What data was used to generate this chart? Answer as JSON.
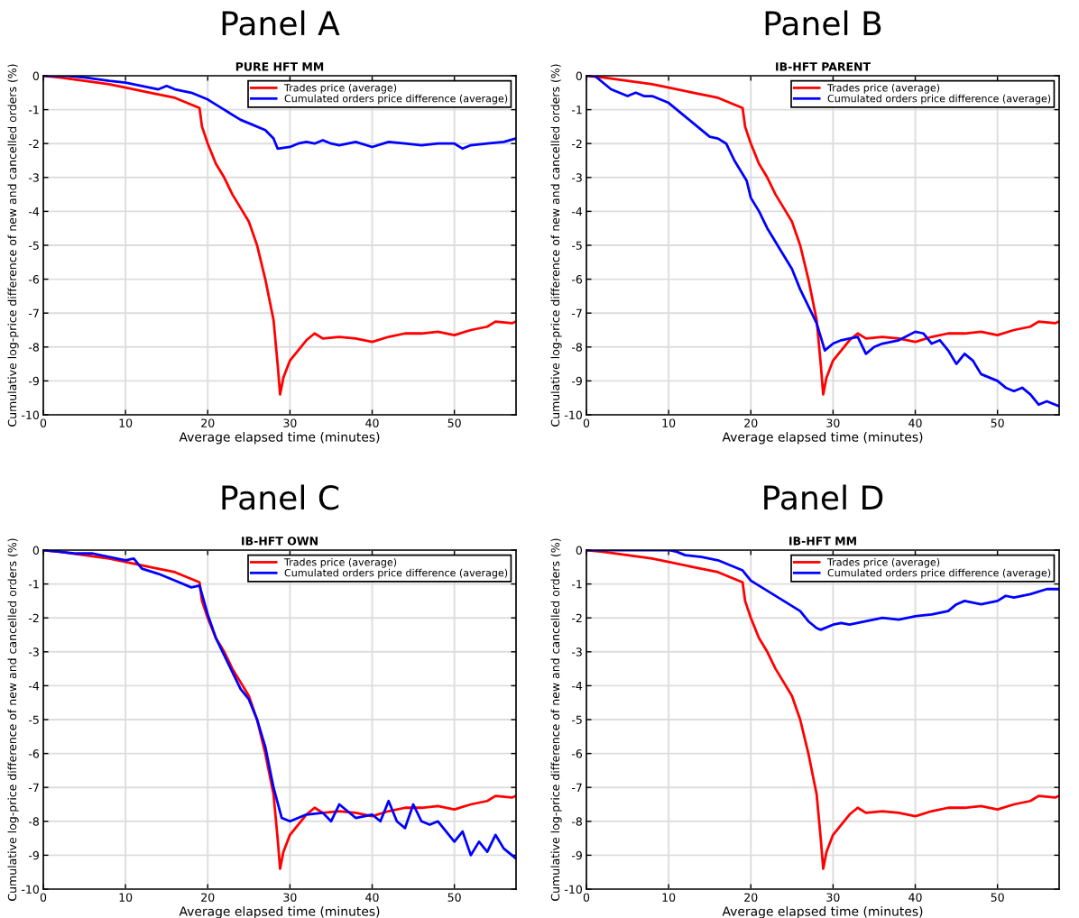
{
  "chart_data": [
    {
      "type": "line",
      "title": "Panel A",
      "subtitle": "PURE HFT MM",
      "xlabel": "Average elapsed time (minutes)",
      "ylabel": "Cumulative log-price difference of new and cancelled orders (%)",
      "xlim": [
        0,
        57.5
      ],
      "ylim": [
        -10,
        0
      ],
      "xticks": [
        0,
        10,
        20,
        30,
        40,
        50
      ],
      "yticks": [
        -10,
        -9,
        -8,
        -7,
        -6,
        -5,
        -4,
        -3,
        -2,
        -1,
        0
      ],
      "grid": true,
      "legend": "top right",
      "line_style": "solid",
      "marker": "none",
      "series": [
        {
          "name": "Trades price (average)",
          "color": "#ff0000",
          "x": [
            0,
            2,
            5,
            8,
            10,
            13,
            16,
            18,
            19,
            19.3,
            20,
            21,
            22,
            23,
            24,
            25,
            26,
            27,
            28,
            28.5,
            28.8,
            29.2,
            30,
            31,
            32,
            33,
            34,
            36,
            38,
            40,
            42,
            44,
            46,
            48,
            50,
            52,
            54,
            55,
            57,
            57.5
          ],
          "values": [
            0,
            -0.05,
            -0.15,
            -0.25,
            -0.35,
            -0.5,
            -0.65,
            -0.85,
            -0.95,
            -1.5,
            -2,
            -2.6,
            -3,
            -3.5,
            -3.9,
            -4.3,
            -5,
            -6,
            -7.2,
            -8.5,
            -9.4,
            -8.9,
            -8.4,
            -8.1,
            -7.8,
            -7.6,
            -7.75,
            -7.7,
            -7.75,
            -7.85,
            -7.7,
            -7.6,
            -7.6,
            -7.55,
            -7.65,
            -7.5,
            -7.4,
            -7.25,
            -7.3,
            -7.25
          ]
        },
        {
          "name": "Cumulated orders price difference (average)",
          "color": "#0000ff",
          "x": [
            0,
            3,
            5,
            8,
            10,
            12,
            14,
            15,
            16,
            18,
            19,
            20,
            22,
            24,
            25,
            27,
            28,
            28.5,
            30,
            31,
            32,
            33,
            34,
            35,
            36,
            38,
            40,
            42,
            44,
            46,
            48,
            50,
            51,
            52,
            54,
            56,
            57.5
          ],
          "values": [
            0,
            0,
            -0.05,
            -0.15,
            -0.2,
            -0.3,
            -0.4,
            -0.3,
            -0.4,
            -0.5,
            -0.6,
            -0.7,
            -1,
            -1.3,
            -1.4,
            -1.6,
            -1.85,
            -2.15,
            -2.1,
            -2.0,
            -1.95,
            -2,
            -1.9,
            -2.0,
            -2.05,
            -1.95,
            -2.1,
            -1.95,
            -2.0,
            -2.05,
            -2.0,
            -2.0,
            -2.15,
            -2.05,
            -2.0,
            -1.95,
            -1.85
          ]
        }
      ]
    },
    {
      "type": "line",
      "title": "Panel B",
      "subtitle": "IB-HFT PARENT",
      "xlabel": "Average elapsed time (minutes)",
      "ylabel": "Cumulative log-price difference of new and cancelled orders (%)",
      "xlim": [
        0,
        57.5
      ],
      "ylim": [
        -10,
        0
      ],
      "xticks": [
        0,
        10,
        20,
        30,
        40,
        50
      ],
      "yticks": [
        -10,
        -9,
        -8,
        -7,
        -6,
        -5,
        -4,
        -3,
        -2,
        -1,
        0
      ],
      "grid": true,
      "legend": "top right",
      "line_style": "solid",
      "marker": "none",
      "series": [
        {
          "name": "Trades price (average)",
          "color": "#ff0000",
          "x": [
            0,
            2,
            5,
            8,
            10,
            13,
            16,
            18,
            19,
            19.3,
            20,
            21,
            22,
            23,
            24,
            25,
            26,
            27,
            28,
            28.5,
            28.8,
            29.2,
            30,
            31,
            32,
            33,
            34,
            36,
            38,
            40,
            42,
            44,
            46,
            48,
            50,
            52,
            54,
            55,
            57,
            57.5
          ],
          "values": [
            0,
            -0.05,
            -0.15,
            -0.25,
            -0.35,
            -0.5,
            -0.65,
            -0.85,
            -0.95,
            -1.5,
            -2,
            -2.6,
            -3,
            -3.5,
            -3.9,
            -4.3,
            -5,
            -6,
            -7.2,
            -8.5,
            -9.4,
            -8.9,
            -8.4,
            -8.1,
            -7.8,
            -7.6,
            -7.75,
            -7.7,
            -7.75,
            -7.85,
            -7.7,
            -7.6,
            -7.6,
            -7.55,
            -7.65,
            -7.5,
            -7.4,
            -7.25,
            -7.3,
            -7.25
          ]
        },
        {
          "name": "Cumulated orders price difference (average)",
          "color": "#0000ff",
          "x": [
            0,
            1,
            2,
            3,
            4,
            5,
            6,
            7,
            8,
            9,
            10,
            11,
            12,
            13,
            14,
            15,
            16,
            17,
            18,
            19,
            19.5,
            20,
            21,
            22,
            23,
            24,
            25,
            26,
            27,
            28,
            29,
            30,
            31,
            32,
            33,
            34,
            35,
            36,
            38,
            40,
            41,
            42,
            43,
            44,
            45,
            46,
            47,
            48,
            49,
            50,
            51,
            52,
            53,
            54,
            55,
            56,
            57.5
          ],
          "values": [
            0,
            0,
            -0.2,
            -0.4,
            -0.5,
            -0.6,
            -0.5,
            -0.6,
            -0.6,
            -0.7,
            -0.8,
            -1.0,
            -1.2,
            -1.4,
            -1.6,
            -1.8,
            -1.85,
            -2.0,
            -2.5,
            -2.9,
            -3.1,
            -3.6,
            -4,
            -4.5,
            -4.9,
            -5.3,
            -5.7,
            -6.3,
            -6.8,
            -7.3,
            -8.1,
            -7.9,
            -7.8,
            -7.75,
            -7.7,
            -8.2,
            -8.0,
            -7.9,
            -7.8,
            -7.55,
            -7.6,
            -7.9,
            -7.8,
            -8.1,
            -8.5,
            -8.2,
            -8.4,
            -8.8,
            -8.9,
            -9.0,
            -9.2,
            -9.3,
            -9.2,
            -9.4,
            -9.7,
            -9.6,
            -9.75
          ]
        }
      ]
    },
    {
      "type": "line",
      "title": "Panel C",
      "subtitle": "IB-HFT OWN",
      "xlabel": "Average elapsed time (minutes)",
      "ylabel": "Cumulative log-price difference of new and cancelled orders (%)",
      "xlim": [
        0,
        57.5
      ],
      "ylim": [
        -10,
        0
      ],
      "xticks": [
        0,
        10,
        20,
        30,
        40,
        50
      ],
      "yticks": [
        -10,
        -9,
        -8,
        -7,
        -6,
        -5,
        -4,
        -3,
        -2,
        -1,
        0
      ],
      "grid": true,
      "legend": "top right",
      "line_style": "solid",
      "marker": "none",
      "series": [
        {
          "name": "Trades price (average)",
          "color": "#ff0000",
          "x": [
            0,
            2,
            5,
            8,
            10,
            13,
            16,
            18,
            19,
            19.3,
            20,
            21,
            22,
            23,
            24,
            25,
            26,
            27,
            28,
            28.5,
            28.8,
            29.2,
            30,
            31,
            32,
            33,
            34,
            36,
            38,
            40,
            42,
            44,
            46,
            48,
            50,
            52,
            54,
            55,
            57,
            57.5
          ],
          "values": [
            0,
            -0.05,
            -0.15,
            -0.25,
            -0.35,
            -0.5,
            -0.65,
            -0.85,
            -0.95,
            -1.5,
            -2,
            -2.6,
            -3,
            -3.5,
            -3.9,
            -4.3,
            -5,
            -6,
            -7.2,
            -8.5,
            -9.4,
            -8.9,
            -8.4,
            -8.1,
            -7.8,
            -7.6,
            -7.75,
            -7.7,
            -7.75,
            -7.85,
            -7.7,
            -7.6,
            -7.6,
            -7.55,
            -7.65,
            -7.5,
            -7.4,
            -7.25,
            -7.3,
            -7.25
          ]
        },
        {
          "name": "Cumulated orders price difference (average)",
          "color": "#0000ff",
          "x": [
            0,
            2,
            4,
            6,
            8,
            10,
            11,
            12,
            14,
            16,
            18,
            19,
            20,
            21,
            22,
            23,
            24,
            25,
            26,
            27,
            28,
            29,
            30,
            31,
            32,
            34,
            35,
            36,
            38,
            40,
            41,
            42,
            43,
            44,
            45,
            46,
            47,
            48,
            49,
            50,
            51,
            52,
            53,
            54,
            55,
            56,
            57.5
          ],
          "values": [
            0,
            -0.05,
            -0.1,
            -0.1,
            -0.2,
            -0.3,
            -0.25,
            -0.55,
            -0.7,
            -0.9,
            -1.1,
            -1.05,
            -1.9,
            -2.6,
            -3.1,
            -3.6,
            -4.1,
            -4.4,
            -5,
            -5.8,
            -7.0,
            -7.9,
            -8.0,
            -7.9,
            -7.8,
            -7.75,
            -8.0,
            -7.5,
            -7.9,
            -7.8,
            -8.0,
            -7.4,
            -8.0,
            -8.2,
            -7.5,
            -8.0,
            -8.1,
            -8.0,
            -8.3,
            -8.6,
            -8.3,
            -9.0,
            -8.6,
            -8.9,
            -8.4,
            -8.8,
            -9.1
          ]
        }
      ]
    },
    {
      "type": "line",
      "title": "Panel D",
      "subtitle": "IB-HFT MM",
      "xlabel": "Average elapsed time (minutes)",
      "ylabel": "Cumulative log-price difference of new and cancelled orders (%)",
      "xlim": [
        0,
        57.5
      ],
      "ylim": [
        -10,
        0
      ],
      "xticks": [
        0,
        10,
        20,
        30,
        40,
        50
      ],
      "yticks": [
        -10,
        -9,
        -8,
        -7,
        -6,
        -5,
        -4,
        -3,
        -2,
        -1,
        0
      ],
      "grid": true,
      "legend": "top right",
      "line_style": "solid",
      "marker": "none",
      "series": [
        {
          "name": "Trades price (average)",
          "color": "#ff0000",
          "x": [
            0,
            2,
            5,
            8,
            10,
            13,
            16,
            18,
            19,
            19.3,
            20,
            21,
            22,
            23,
            24,
            25,
            26,
            27,
            28,
            28.5,
            28.8,
            29.2,
            30,
            31,
            32,
            33,
            34,
            36,
            38,
            40,
            42,
            44,
            46,
            48,
            50,
            52,
            54,
            55,
            57,
            57.5
          ],
          "values": [
            0,
            -0.05,
            -0.15,
            -0.25,
            -0.35,
            -0.5,
            -0.65,
            -0.85,
            -0.95,
            -1.5,
            -2,
            -2.6,
            -3,
            -3.5,
            -3.9,
            -4.3,
            -5,
            -6,
            -7.2,
            -8.5,
            -9.4,
            -8.9,
            -8.4,
            -8.1,
            -7.8,
            -7.6,
            -7.75,
            -7.7,
            -7.75,
            -7.85,
            -7.7,
            -7.6,
            -7.6,
            -7.55,
            -7.65,
            -7.5,
            -7.4,
            -7.25,
            -7.3,
            -7.25
          ]
        },
        {
          "name": "Cumulated orders price difference (average)",
          "color": "#0000ff",
          "x": [
            0,
            3,
            6,
            9,
            10,
            11,
            12,
            14,
            16,
            18,
            19,
            20,
            22,
            24,
            26,
            27,
            28,
            28.5,
            30,
            31,
            32,
            34,
            36,
            38,
            40,
            42,
            44,
            45,
            46,
            48,
            50,
            51,
            52,
            54,
            56,
            57.5
          ],
          "values": [
            0,
            0,
            0,
            0,
            0,
            -0.05,
            -0.15,
            -0.2,
            -0.3,
            -0.5,
            -0.6,
            -0.9,
            -1.2,
            -1.5,
            -1.8,
            -2.1,
            -2.3,
            -2.35,
            -2.2,
            -2.15,
            -2.2,
            -2.1,
            -2.0,
            -2.05,
            -1.95,
            -1.9,
            -1.8,
            -1.6,
            -1.5,
            -1.6,
            -1.5,
            -1.35,
            -1.4,
            -1.3,
            -1.15,
            -1.15
          ]
        }
      ]
    }
  ]
}
